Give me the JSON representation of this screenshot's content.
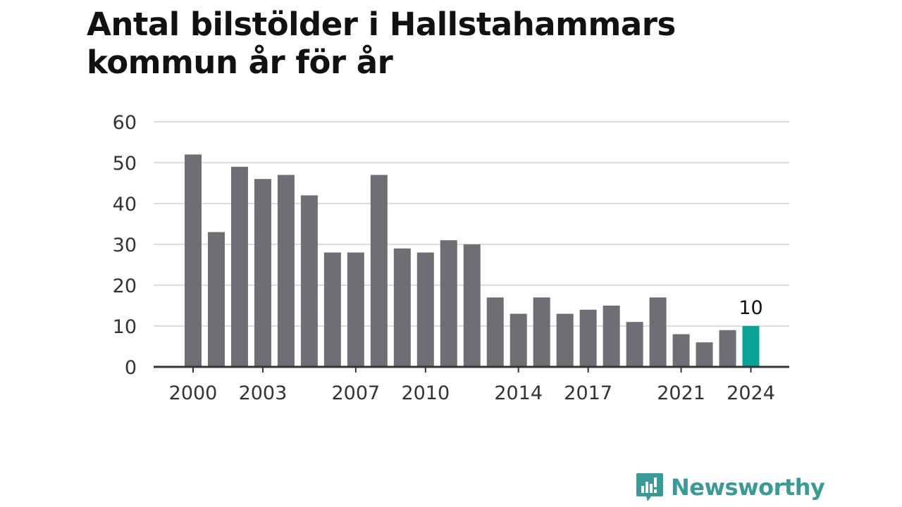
{
  "title_lines": [
    "Antal bilstölder i Hallstahammars",
    "kommun år för år"
  ],
  "brand": {
    "name": "Newsworthy",
    "color": "#3a9a98"
  },
  "colors": {
    "bar": "#6e6e74",
    "highlight": "#0aa398",
    "grid": "#dddddd",
    "axis": "#333333"
  },
  "chart_data": {
    "type": "bar",
    "title": "Antal bilstölder i Hallstahammars kommun år för år",
    "x": [
      2000,
      2001,
      2002,
      2003,
      2004,
      2005,
      2006,
      2007,
      2008,
      2009,
      2010,
      2011,
      2012,
      2013,
      2014,
      2015,
      2016,
      2017,
      2018,
      2019,
      2020,
      2021,
      2022,
      2023,
      2024
    ],
    "values": [
      52,
      33,
      49,
      46,
      47,
      42,
      28,
      28,
      47,
      29,
      28,
      31,
      30,
      17,
      13,
      17,
      13,
      14,
      15,
      11,
      17,
      8,
      6,
      9,
      10
    ],
    "x_tick_labels": [
      "2000",
      "2003",
      "2007",
      "2010",
      "2014",
      "2017",
      "2021",
      "2024"
    ],
    "y_ticks": [
      0,
      10,
      20,
      30,
      40,
      50,
      60
    ],
    "ylim": [
      0,
      60
    ],
    "highlight": {
      "x": 2024,
      "label": "10"
    },
    "grid": true
  }
}
